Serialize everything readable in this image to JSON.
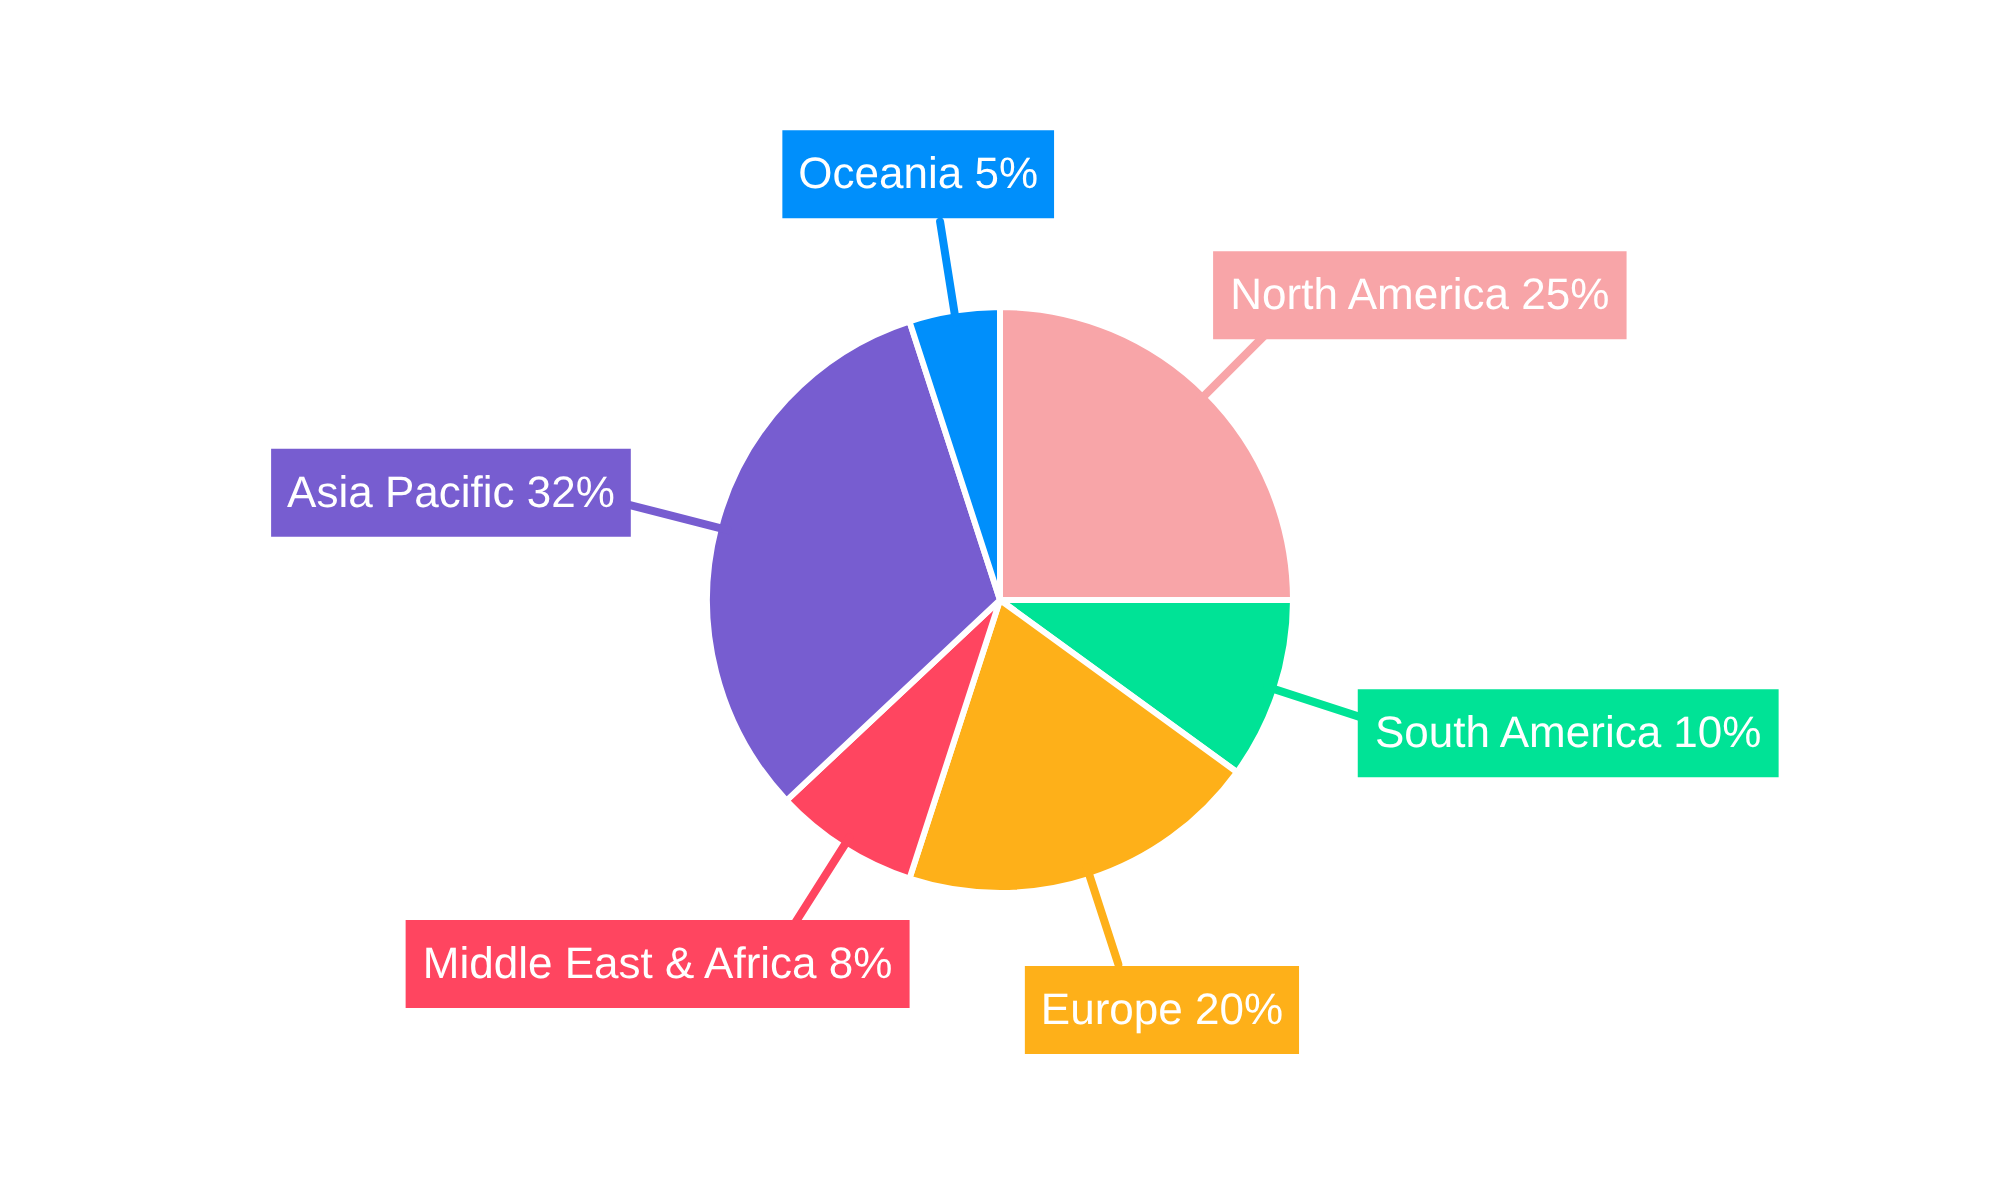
{
  "chart_data": {
    "type": "pie",
    "categories": [
      "North America",
      "South America",
      "Europe",
      "Middle East & Africa",
      "Asia Pacific",
      "Oceania"
    ],
    "values": [
      25,
      10,
      20,
      8,
      32,
      5
    ],
    "value_labels": [
      "25%",
      "10%",
      "20%",
      "8%",
      "32%",
      "5%"
    ],
    "colors": [
      "#f8a5a8",
      "#00e396",
      "#feb019",
      "#ff4560",
      "#775dd0",
      "#008ffb"
    ],
    "legend": false
  }
}
